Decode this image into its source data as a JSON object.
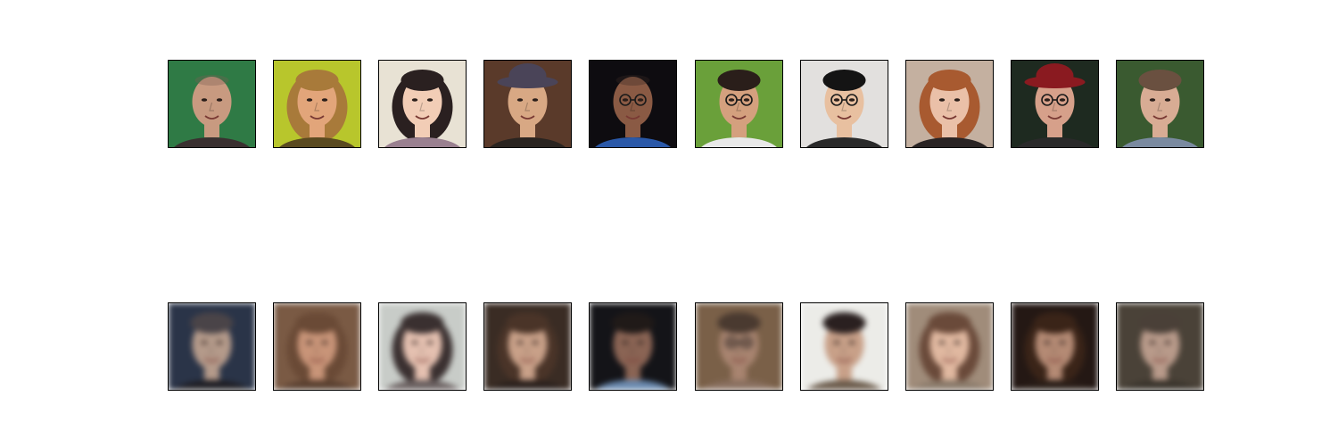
{
  "figure": {
    "rows": [
      {
        "name": "original-faces",
        "tiles": [
          {
            "bg": "#2f7a45",
            "skin": "#c89a80",
            "hair": "#7a5e52",
            "shirt": "#3a3030",
            "hair_style": "bald",
            "glasses": false
          },
          {
            "bg": "#b8c62c",
            "skin": "#e2a57a",
            "hair": "#a87a3a",
            "shirt": "#5a4a20",
            "hair_style": "long",
            "glasses": false
          },
          {
            "bg": "#e8e2d4",
            "skin": "#f2cdb6",
            "hair": "#2a2020",
            "shirt": "#9a8090",
            "hair_style": "long",
            "glasses": false
          },
          {
            "bg": "#5a3a2a",
            "skin": "#d8a884",
            "hair": "#4a4458",
            "shirt": "#2a2420",
            "hair_style": "hat",
            "glasses": false
          },
          {
            "bg": "#0e0c10",
            "skin": "#8a5a44",
            "hair": "#3a2a24",
            "shirt": "#2a58a8",
            "hair_style": "bald",
            "glasses": true
          },
          {
            "bg": "#6aa03a",
            "skin": "#d4a07e",
            "hair": "#2a1e1a",
            "shirt": "#e8e8e8",
            "hair_style": "short",
            "glasses": true
          },
          {
            "bg": "#e2e0de",
            "skin": "#e8c0a0",
            "hair": "#141414",
            "shirt": "#2a2a2a",
            "hair_style": "short",
            "glasses": true
          },
          {
            "bg": "#c4b0a0",
            "skin": "#eac0a8",
            "hair": "#a85a30",
            "shirt": "#2a2424",
            "hair_style": "curly",
            "glasses": false
          },
          {
            "bg": "#1e2a20",
            "skin": "#d6a08a",
            "hair": "#8a1a20",
            "shirt": "#2a2a2a",
            "hair_style": "hat",
            "glasses": true
          },
          {
            "bg": "#3a5a30",
            "skin": "#d8ac94",
            "hair": "#6a5040",
            "shirt": "#7a8aa0",
            "hair_style": "short",
            "glasses": false
          }
        ]
      },
      {
        "name": "reconstructed-faces",
        "tiles": [
          {
            "bg": "#2a3448",
            "skin": "#b49a8a",
            "hair": "#4a4448",
            "shirt": "#1e1e24",
            "hair_style": "short",
            "glasses": false
          },
          {
            "bg": "#7a5a44",
            "skin": "#c89478",
            "hair": "#6a4a36",
            "shirt": "#5a4030",
            "hair_style": "long",
            "glasses": false
          },
          {
            "bg": "#c8ccc8",
            "skin": "#e4c0b0",
            "hair": "#3a3030",
            "shirt": "#6a6060",
            "hair_style": "long",
            "glasses": false
          },
          {
            "bg": "#3a2c24",
            "skin": "#c8a088",
            "hair": "#4a3428",
            "shirt": "#2a201c",
            "hair_style": "long",
            "glasses": false
          },
          {
            "bg": "#141418",
            "skin": "#8a6454",
            "hair": "#201a18",
            "shirt": "#6a8ab0",
            "hair_style": "short",
            "glasses": false
          },
          {
            "bg": "#7a6048",
            "skin": "#a88470",
            "hair": "#4a3a30",
            "shirt": "#8a7060",
            "hair_style": "short",
            "glasses": true
          },
          {
            "bg": "#ecece8",
            "skin": "#c8a088",
            "hair": "#2a2020",
            "shirt": "#6a5a4a",
            "hair_style": "short",
            "glasses": false
          },
          {
            "bg": "#a08c7a",
            "skin": "#e0b8a0",
            "hair": "#6a4a3a",
            "shirt": "#8a7a6a",
            "hair_style": "long",
            "glasses": false
          },
          {
            "bg": "#241814",
            "skin": "#b48a74",
            "hair": "#3a2418",
            "shirt": "#2a1e18",
            "hair_style": "long",
            "glasses": false
          },
          {
            "bg": "#4a4238",
            "skin": "#b89a8a",
            "hair": "#4a4038",
            "shirt": "#3a342c",
            "hair_style": "short",
            "glasses": false
          }
        ]
      }
    ]
  }
}
